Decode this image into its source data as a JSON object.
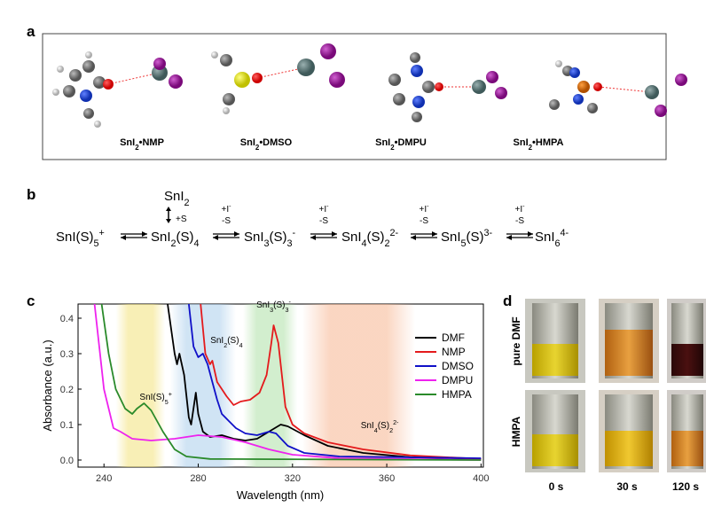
{
  "panels": [
    "a",
    "b",
    "c",
    "d"
  ],
  "complexes": [
    [
      {
        "t": "SnI"
      },
      {
        "sub": "2"
      },
      {
        "t": "•NMP"
      }
    ],
    [
      {
        "t": "SnI"
      },
      {
        "sub": "2"
      },
      {
        "t": "•DMSO"
      }
    ],
    [
      {
        "t": "SnI"
      },
      {
        "sub": "2"
      },
      {
        "t": "•DMPU"
      }
    ],
    [
      {
        "t": "SnI"
      },
      {
        "sub": "2"
      },
      {
        "t": "•HMPA"
      }
    ]
  ],
  "equilibria": {
    "species": [
      [
        {
          "t": "SnI(S)"
        },
        {
          "sub": "5"
        },
        {
          "sup": "+"
        }
      ],
      [
        {
          "t": "SnI"
        },
        {
          "sub": "2"
        },
        {
          "t": "(S)"
        },
        {
          "sub": "4"
        }
      ],
      [
        {
          "t": "SnI"
        },
        {
          "sub": "3"
        },
        {
          "t": "(S)"
        },
        {
          "sub": "3"
        },
        {
          "sup": "-"
        }
      ],
      [
        {
          "t": "SnI"
        },
        {
          "sub": "4"
        },
        {
          "t": "(S)"
        },
        {
          "sub": "2"
        },
        {
          "sup": "2-"
        }
      ],
      [
        {
          "t": "SnI"
        },
        {
          "sub": "5"
        },
        {
          "t": "(S)"
        },
        {
          "sup": "3-"
        }
      ],
      [
        {
          "t": "SnI"
        },
        {
          "sub": "6"
        },
        {
          "sup": "4-"
        }
      ]
    ],
    "solid": [
      {
        "t": "SnI"
      },
      {
        "sub": "2"
      }
    ],
    "solvation": "+S",
    "iodide": [
      {
        "t": "+I"
      },
      {
        "sup": "-"
      }
    ],
    "desolvation": "-S"
  },
  "chart_data": {
    "type": "line",
    "xlabel": "Wavelength (nm)",
    "ylabel": "Absorbance (a.u.)",
    "xlim": [
      229,
      401
    ],
    "ylim": [
      -0.02,
      0.44
    ],
    "xticks": [
      240,
      280,
      320,
      360,
      400
    ],
    "yticks": [
      {
        "value": 0,
        "label": "0.0"
      },
      0.1,
      0.2,
      0.3,
      0.4
    ],
    "series": [
      {
        "name": "DMF",
        "color": "#000000",
        "x": [
          267,
          270,
          271,
          272,
          274,
          276,
          277,
          279,
          280,
          282,
          285,
          290,
          295,
          300,
          305,
          310,
          315,
          318,
          325,
          335,
          350,
          370,
          400
        ],
        "values": [
          0.44,
          0.3,
          0.27,
          0.3,
          0.24,
          0.12,
          0.1,
          0.19,
          0.13,
          0.08,
          0.065,
          0.07,
          0.06,
          0.055,
          0.06,
          0.08,
          0.1,
          0.095,
          0.07,
          0.04,
          0.02,
          0.008,
          0.003
        ]
      },
      {
        "name": "NMP",
        "color": "#e41a1c",
        "x": [
          281,
          283,
          285,
          286,
          288,
          292,
          295,
          298,
          302,
          306,
          309,
          311,
          312,
          314,
          317,
          320,
          325,
          335,
          350,
          370,
          400
        ],
        "values": [
          0.44,
          0.3,
          0.27,
          0.28,
          0.22,
          0.18,
          0.155,
          0.165,
          0.17,
          0.19,
          0.24,
          0.33,
          0.38,
          0.33,
          0.15,
          0.1,
          0.075,
          0.05,
          0.03,
          0.013,
          0.003
        ]
      },
      {
        "name": "DMSO",
        "color": "#1010c8",
        "x": [
          276,
          278,
          280,
          282,
          284,
          286,
          288,
          290,
          293,
          296,
          300,
          305,
          310,
          313,
          318,
          325,
          340,
          400
        ],
        "values": [
          0.44,
          0.32,
          0.29,
          0.3,
          0.27,
          0.22,
          0.17,
          0.13,
          0.11,
          0.09,
          0.075,
          0.07,
          0.08,
          0.075,
          0.04,
          0.02,
          0.01,
          0.005
        ]
      },
      {
        "name": "DMPU",
        "color": "#ee22ee",
        "x": [
          236,
          240,
          244,
          247,
          252,
          260,
          270,
          280,
          290,
          300,
          310,
          320,
          340,
          400
        ],
        "values": [
          0.44,
          0.2,
          0.09,
          0.08,
          0.06,
          0.055,
          0.06,
          0.07,
          0.065,
          0.05,
          0.03,
          0.015,
          0.005,
          0
        ]
      },
      {
        "name": "HMPA",
        "color": "#2a8a2a",
        "x": [
          239,
          242,
          245,
          249,
          252,
          254,
          257,
          260,
          265,
          270,
          275,
          285,
          400
        ],
        "values": [
          0.44,
          0.3,
          0.2,
          0.145,
          0.13,
          0.145,
          0.16,
          0.14,
          0.08,
          0.03,
          0.01,
          0.003,
          0
        ]
      }
    ],
    "bands": [
      {
        "label": [
          {
            "t": "SnI(S)"
          },
          {
            "sub": "5"
          },
          {
            "sup": "+"
          }
        ],
        "range": [
          245,
          266
        ],
        "color": "#f3e27a",
        "at": [
          262,
          0.17
        ]
      },
      {
        "label": [
          {
            "t": "SnI"
          },
          {
            "sub": "2"
          },
          {
            "t": "(S)"
          },
          {
            "sub": "4"
          }
        ],
        "range": [
          268,
          296
        ],
        "color": "#a9cdeb",
        "at": [
          292,
          0.33
        ]
      },
      {
        "label": [
          {
            "t": "SnI"
          },
          {
            "sub": "3"
          },
          {
            "t": "(S)"
          },
          {
            "sub": "3"
          },
          {
            "sup": "-"
          }
        ],
        "range": [
          299,
          322
        ],
        "color": "#aee0a6",
        "at": [
          312,
          0.43
        ]
      },
      {
        "label": [
          {
            "t": "SnI"
          },
          {
            "sub": "4"
          },
          {
            "t": "(S)"
          },
          {
            "sub": "2"
          },
          {
            "sup": "2-"
          }
        ],
        "range": [
          324,
          372
        ],
        "color": "#f7b48f",
        "at": [
          357,
          0.09
        ]
      }
    ]
  },
  "vials": {
    "rows": [
      "pure DMF",
      "HMPA"
    ],
    "times": [
      "0 s",
      "30 s",
      "120 s"
    ]
  }
}
